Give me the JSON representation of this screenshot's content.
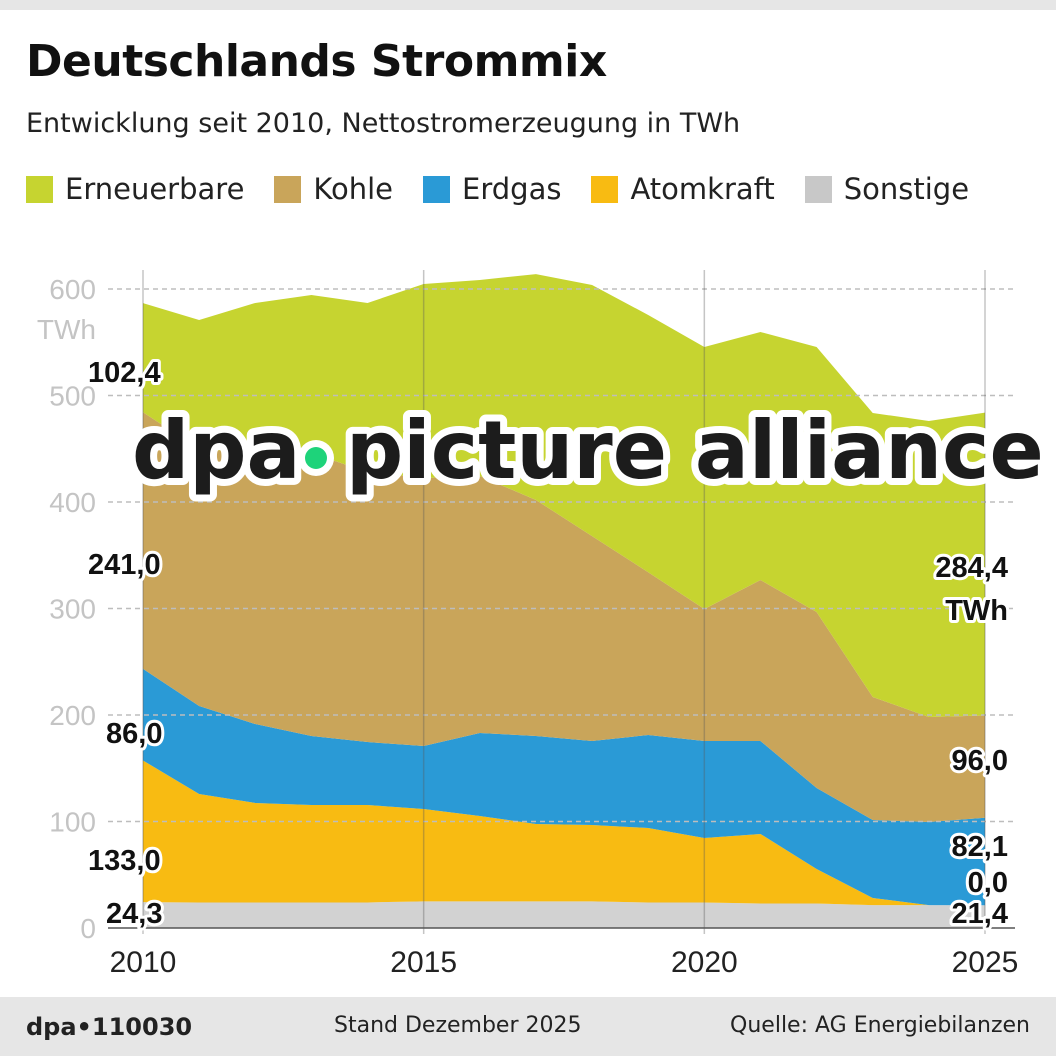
{
  "title": "Deutschlands Strommix",
  "subtitle": "Entwicklung seit 2010, Nettostromerzeugung in TWh",
  "footer": {
    "id": "dpa•110030",
    "date": "Stand Dezember 2025",
    "source": "Quelle: AG Energiebilanzen"
  },
  "watermark": {
    "left": "dpa",
    "right": "picture alliance",
    "dot_color": "#1ed37a"
  },
  "chart_data": {
    "type": "area",
    "stacked": true,
    "title": "Deutschlands Strommix",
    "ylabel": "TWh",
    "ylim": [
      0,
      600
    ],
    "yticks": [
      "0",
      "100",
      "200",
      "300",
      "400",
      "500",
      "600"
    ],
    "xticks": [
      "2010",
      "2015",
      "2020",
      "2025"
    ],
    "grid": "horizontal dashed",
    "legend": "top",
    "x": [
      2010,
      2011,
      2012,
      2013,
      2014,
      2015,
      2016,
      2017,
      2018,
      2019,
      2020,
      2021,
      2022,
      2023,
      2024,
      2025
    ],
    "series": [
      {
        "name": "Sonstige",
        "color": "#d2d2d2",
        "values": [
          24.3,
          24,
          24,
          24,
          24,
          25,
          25,
          25,
          25,
          24,
          24,
          23,
          23,
          21.5,
          21.5,
          21.4
        ]
      },
      {
        "name": "Atomkraft",
        "color": "#f8bb12",
        "values": [
          133.0,
          101.8,
          93.4,
          91.5,
          91.5,
          86.7,
          80.2,
          72.7,
          71.7,
          69.9,
          60.5,
          65.3,
          32.4,
          6.7,
          0,
          0.0
        ]
      },
      {
        "name": "Erdgas",
        "color": "#2a9ad6",
        "values": [
          86.0,
          82.7,
          74.1,
          64.8,
          59.1,
          59.2,
          77.9,
          82.6,
          78.9,
          87.3,
          91.1,
          87.3,
          76.1,
          73.2,
          78.0,
          82.1
        ]
      },
      {
        "name": "Kohle",
        "color": "#c9a55a",
        "values": [
          241.0,
          241.3,
          254.5,
          265.7,
          253.6,
          251.6,
          241.3,
          221.6,
          192.4,
          152.8,
          123.9,
          151.2,
          165.2,
          115.5,
          98.6,
          96.0
        ]
      },
      {
        "name": "Erneuerbare",
        "color": "#c6d430",
        "values": [
          102.4,
          121.1,
          140.9,
          148.4,
          158.7,
          182.2,
          184.1,
          212.1,
          235.8,
          241.6,
          246.0,
          232.8,
          248.8,
          266.7,
          277.9,
          284.4
        ]
      }
    ],
    "legend_order": [
      "Erneuerbare",
      "Kohle",
      "Erdgas",
      "Atomkraft",
      "Sonstige"
    ],
    "labels_start": {
      "Erneuerbare": "102,4",
      "Kohle": "241,0",
      "Erdgas": "86,0",
      "Atomkraft": "133,0",
      "Sonstige": "24,3"
    },
    "labels_end": {
      "Erneuerbare": "284,4",
      "Erneuerbare_unit": "TWh",
      "Kohle": "96,0",
      "Erdgas": "82,1",
      "Atomkraft": "0,0",
      "Sonstige": "21,4"
    }
  }
}
